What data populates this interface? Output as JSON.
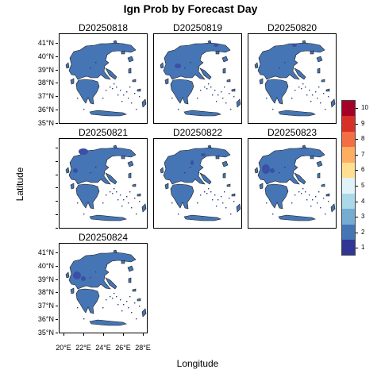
{
  "title": "Ign Prob by Forecast Day",
  "xlabel": "Longitude",
  "ylabel": "Latitude",
  "panels": [
    {
      "label": "D20250818"
    },
    {
      "label": "D20250819"
    },
    {
      "label": "D20250820"
    },
    {
      "label": "D20250821"
    },
    {
      "label": "D20250822"
    },
    {
      "label": "D20250823"
    },
    {
      "label": "D20250824"
    }
  ],
  "lat_ticks": [
    "41°N",
    "40°N",
    "39°N",
    "38°N",
    "37°N",
    "36°N",
    "35°N"
  ],
  "lon_ticks": [
    "20°E",
    "22°E",
    "24°E",
    "26°E",
    "28°E"
  ],
  "legend": {
    "labels": [
      "10",
      "9",
      "8",
      "7",
      "6",
      "5",
      "4",
      "3",
      "2",
      "1"
    ],
    "colors": [
      "#a50026",
      "#d73027",
      "#f46d43",
      "#fdae61",
      "#fee090",
      "#e0f3f8",
      "#abd9e9",
      "#74add1",
      "#4575b4",
      "#313695"
    ]
  },
  "land_color": "#4575b4",
  "hotspot_color": "#3a4fa5"
}
